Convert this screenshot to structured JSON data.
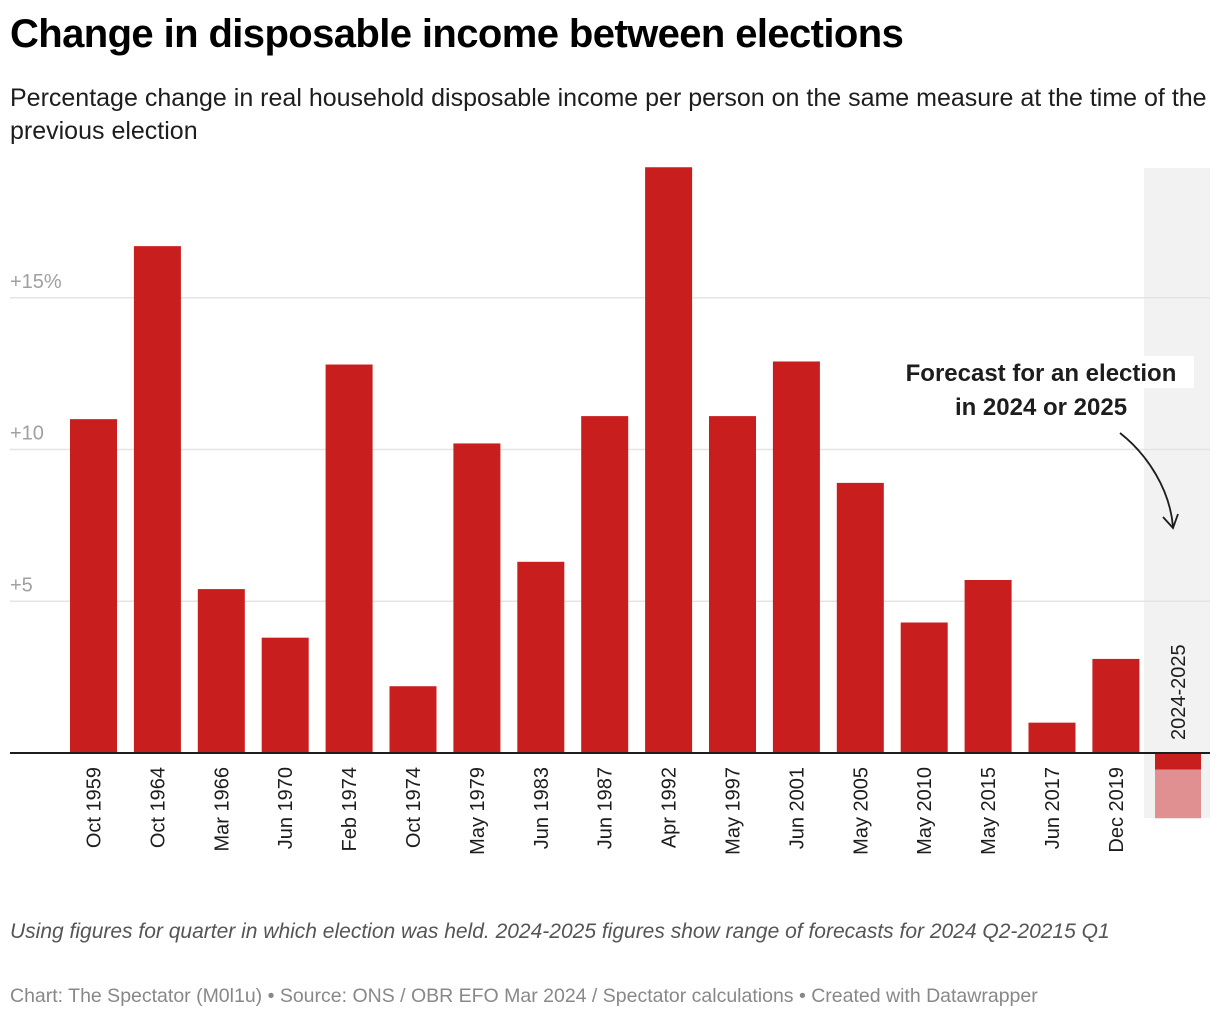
{
  "header": {
    "title": "Change in disposable income between elections",
    "subtitle": "Percentage change in real household disposable income per person on the same measure at the time of the previous election"
  },
  "footer": {
    "notes": "Using figures for quarter in which election was held. 2024-2025 figures show range of forecasts for 2024 Q2-20215 Q1",
    "byline": "Chart: The Spectator (M0l1u) • Source: ONS / OBR EFO Mar 2024 / Spectator calculations • Created with Datawrapper"
  },
  "colors": {
    "bar": "#c81e1e",
    "forecast_range": "#e09090",
    "highlight_band": "#f2f2f2",
    "gridline": "#e4e4e4",
    "baseline": "#1d1d1d"
  },
  "chart_data": {
    "type": "bar",
    "title": "Change in disposable income between elections",
    "subtitle": "Percentage change in real household disposable income per person on the same measure at the time of the previous election",
    "xlabel": "",
    "ylabel": "",
    "ylim": [
      -2.2,
      19.3
    ],
    "grid": true,
    "y_ticks": [
      {
        "value": 5,
        "label": "+5"
      },
      {
        "value": 10,
        "label": "+10"
      },
      {
        "value": 15,
        "label": "+15%"
      }
    ],
    "categories": [
      "Oct 1959",
      "Oct 1964",
      "Mar 1966",
      "Jun 1970",
      "Feb 1974",
      "Oct 1974",
      "May 1979",
      "Jun 1983",
      "Jun 1987",
      "Apr 1992",
      "May 1997",
      "Jun 2001",
      "May 2005",
      "May 2010",
      "May 2015",
      "Jun 2017",
      "Dec 2019"
    ],
    "values": [
      11.0,
      16.7,
      5.4,
      3.8,
      12.8,
      2.2,
      10.2,
      6.3,
      11.1,
      19.3,
      11.1,
      12.9,
      8.9,
      4.3,
      5.7,
      1.0,
      3.1
    ],
    "forecast": {
      "category": "2024-2025",
      "range_high": -0.55,
      "range_low": -2.15
    },
    "annotation": {
      "line1": "Forecast for an election",
      "line2": "in 2024 or 2025"
    }
  }
}
